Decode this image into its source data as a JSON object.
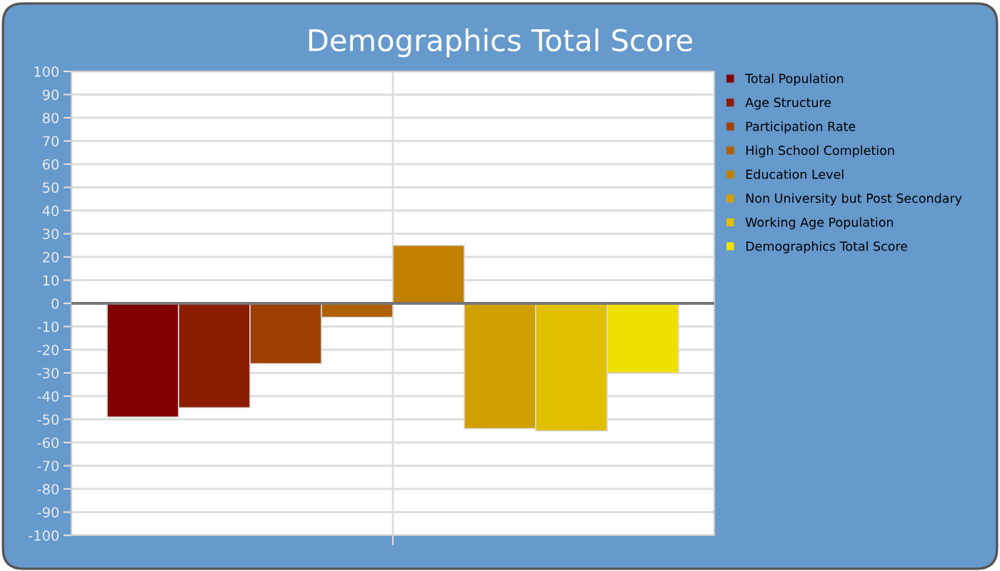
{
  "chart_data": {
    "type": "bar",
    "title": "Demographics Total Score",
    "categories": [
      null
    ],
    "series": [
      {
        "name": "Total Population",
        "color": "#800000",
        "values": [
          -49
        ]
      },
      {
        "name": "Age Structure",
        "color": "#8c1e00",
        "values": [
          -45
        ]
      },
      {
        "name": "Participation Rate",
        "color": "#a04000",
        "values": [
          -26
        ]
      },
      {
        "name": "High School Completion",
        "color": "#b06000",
        "values": [
          -6
        ]
      },
      {
        "name": "Education Level",
        "color": "#c08000",
        "values": [
          25
        ]
      },
      {
        "name": "Non University but Post Secondary",
        "color": "#d0a000",
        "values": [
          -54
        ]
      },
      {
        "name": "Working Age Population",
        "color": "#e0c000",
        "values": [
          -55
        ]
      },
      {
        "name": "Demographics Total Score",
        "color": "#f0e000",
        "values": [
          -30
        ]
      }
    ],
    "ylim": [
      -100,
      100
    ],
    "yticks": [
      -100,
      -90,
      -80,
      -70,
      -60,
      -50,
      -40,
      -30,
      -20,
      -10,
      0,
      10,
      20,
      30,
      40,
      50,
      60,
      70,
      80,
      90,
      100
    ],
    "grid": true,
    "legend": "right",
    "tick_labels": "y"
  }
}
